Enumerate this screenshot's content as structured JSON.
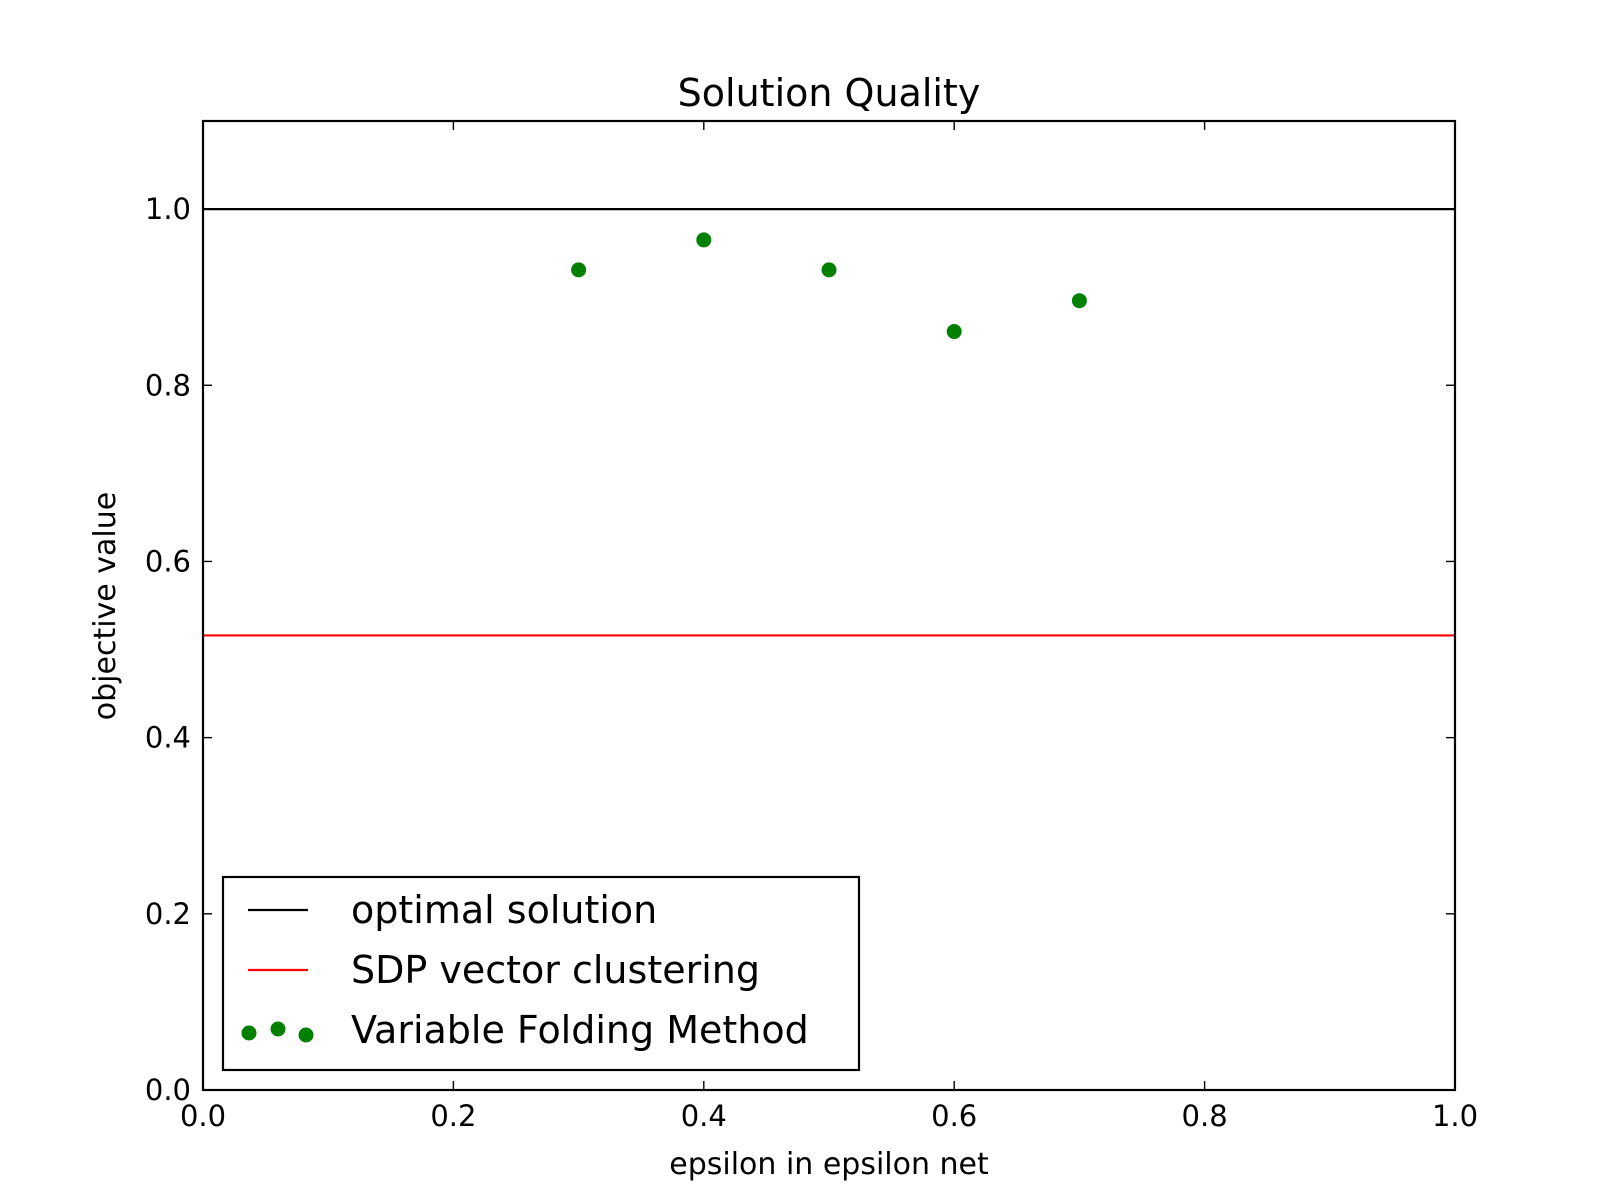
{
  "chart_data": {
    "type": "scatter",
    "title": "Solution Quality",
    "xlabel": "epsilon in epsilon net",
    "ylabel": "objective value",
    "xlim": [
      0.0,
      1.0
    ],
    "ylim": [
      0.0,
      1.1
    ],
    "xticks": [
      "0.0",
      "0.2",
      "0.4",
      "0.6",
      "0.8",
      "1.0"
    ],
    "yticks": [
      "0.0",
      "0.2",
      "0.4",
      "0.6",
      "0.8",
      "1.0"
    ],
    "grid": false,
    "legend_position": "lower-left",
    "series": [
      {
        "name": "optimal solution",
        "kind": "hline",
        "y": 1.0,
        "color": "#000000"
      },
      {
        "name": "SDP vector clustering",
        "kind": "hline",
        "y": 0.516,
        "color": "#ff0000"
      },
      {
        "name": "Variable Folding Method",
        "kind": "points",
        "color": "#008000",
        "x": [
          0.3,
          0.4,
          0.5,
          0.6,
          0.7
        ],
        "y": [
          0.931,
          0.965,
          0.931,
          0.861,
          0.896
        ]
      }
    ]
  }
}
